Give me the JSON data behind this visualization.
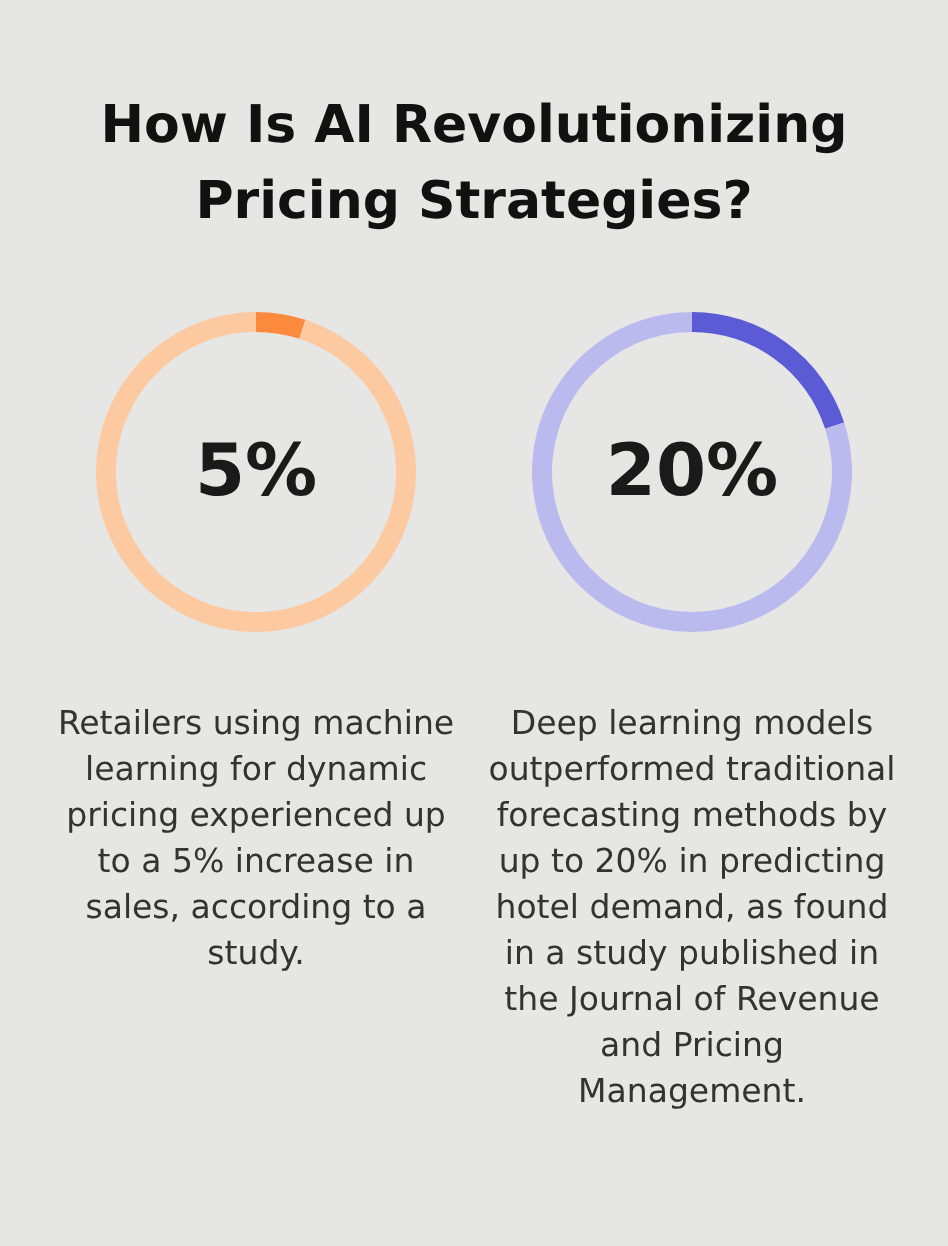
{
  "chart_data": [
    {
      "type": "donut",
      "title": "How Is AI Revolutionizing Pricing Strategies?",
      "categories": [
        null,
        null
      ],
      "values": [
        5,
        95
      ],
      "colors": [
        "#fb8a3c",
        "#fdc9a0"
      ],
      "value_labels": [
        "5%",
        null
      ],
      "annotations": [
        "Retailers using machine learning for dynamic pricing experienced up to a 5% increase in sales, according to a study."
      ]
    },
    {
      "type": "donut",
      "categories": [
        null,
        null
      ],
      "values": [
        20,
        80
      ],
      "colors": [
        "#5b5bd6",
        "#babaee"
      ],
      "value_labels": [
        "20%",
        null
      ],
      "annotations": [
        "Deep learning models outperformed traditional forecasting methods by up to 20% in predicting hotel demand, as found in a study published in the Journal of Revenue and Pricing Management."
      ]
    }
  ]
}
